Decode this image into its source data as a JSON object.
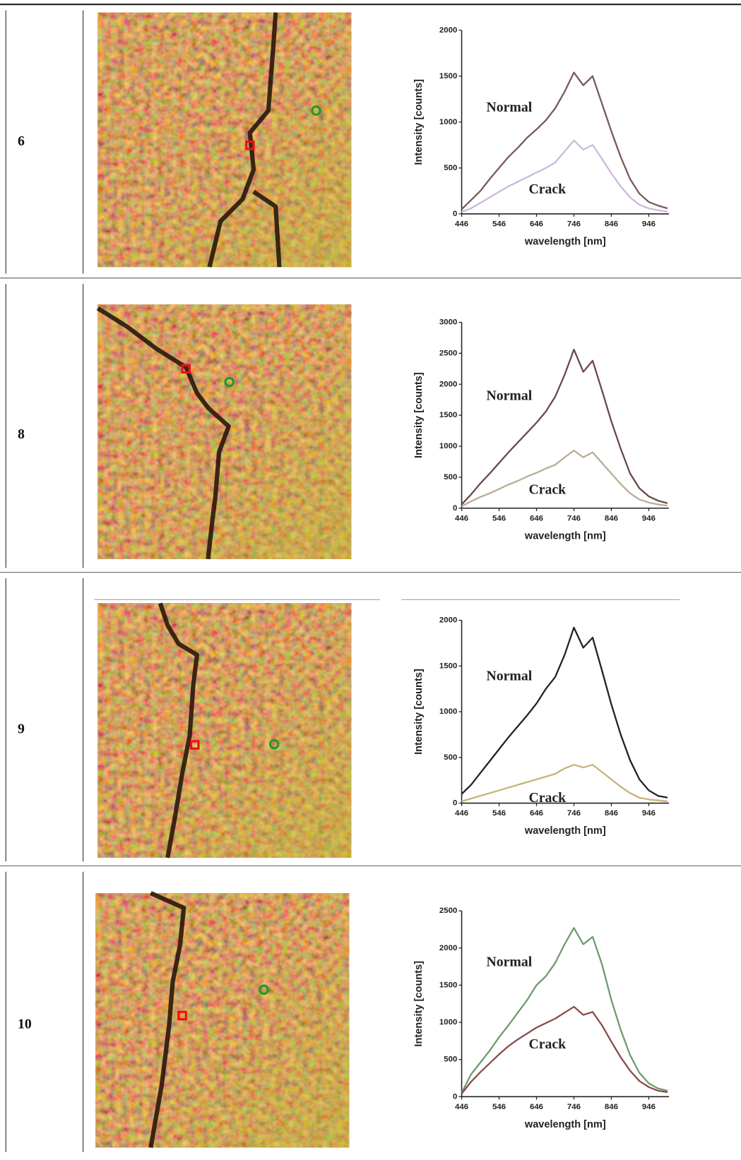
{
  "table": {
    "rows": [
      "6",
      "8",
      "9",
      "10"
    ]
  },
  "chart_data": [
    {
      "type": "line",
      "xlabel": "wavelength [nm]",
      "ylabel": "Intensity [counts]",
      "x": [
        446,
        471,
        496,
        521,
        546,
        571,
        596,
        621,
        646,
        671,
        696,
        721,
        746,
        771,
        796,
        821,
        846,
        871,
        896,
        921,
        946,
        971,
        996
      ],
      "series": [
        {
          "name": "Normal",
          "color": "#7a5858",
          "values": [
            50,
            150,
            250,
            380,
            500,
            620,
            720,
            830,
            920,
            1020,
            1150,
            1330,
            1540,
            1400,
            1500,
            1200,
            900,
            620,
            380,
            220,
            130,
            90,
            60
          ]
        },
        {
          "name": "Crack",
          "color": "#cdb8dc",
          "values": [
            20,
            60,
            120,
            180,
            240,
            300,
            350,
            400,
            450,
            500,
            560,
            680,
            800,
            700,
            750,
            600,
            440,
            300,
            180,
            100,
            60,
            40,
            25
          ]
        }
      ],
      "xlim": [
        446,
        1000
      ],
      "ylim": [
        0,
        2000
      ],
      "xticks": [
        446,
        546,
        646,
        746,
        846,
        946
      ],
      "yticks": [
        0,
        500,
        1000,
        1500,
        2000
      ]
    },
    {
      "type": "line",
      "xlabel": "wavelength [nm]",
      "ylabel": "Intensity [counts]",
      "x": [
        446,
        471,
        496,
        521,
        546,
        571,
        596,
        621,
        646,
        671,
        696,
        721,
        746,
        771,
        796,
        821,
        846,
        871,
        896,
        921,
        946,
        971,
        996
      ],
      "series": [
        {
          "name": "Normal",
          "color": "#6b4848",
          "values": [
            60,
            220,
            400,
            560,
            730,
            900,
            1060,
            1220,
            1380,
            1560,
            1800,
            2150,
            2560,
            2200,
            2380,
            1900,
            1400,
            960,
            560,
            320,
            190,
            120,
            80
          ]
        },
        {
          "name": "Crack",
          "color": "#b8ad93",
          "values": [
            30,
            110,
            180,
            240,
            310,
            380,
            440,
            510,
            570,
            640,
            700,
            820,
            930,
            820,
            900,
            730,
            560,
            390,
            240,
            140,
            90,
            60,
            40
          ]
        }
      ],
      "xlim": [
        446,
        1000
      ],
      "ylim": [
        0,
        3000
      ],
      "xticks": [
        446,
        546,
        646,
        746,
        846,
        946
      ],
      "yticks": [
        0,
        500,
        1000,
        1500,
        2000,
        2500,
        3000
      ]
    },
    {
      "type": "line",
      "xlabel": "wavelength [nm]",
      "ylabel": "Intensity [counts]",
      "x": [
        446,
        471,
        496,
        521,
        546,
        571,
        596,
        621,
        646,
        671,
        696,
        721,
        746,
        771,
        796,
        821,
        846,
        871,
        896,
        921,
        946,
        971,
        996
      ],
      "series": [
        {
          "name": "Normal",
          "color": "#222222",
          "values": [
            100,
            200,
            330,
            460,
            590,
            720,
            840,
            960,
            1090,
            1250,
            1380,
            1620,
            1920,
            1700,
            1810,
            1450,
            1080,
            750,
            470,
            260,
            140,
            80,
            60
          ]
        },
        {
          "name": "Crack",
          "color": "#c9b27a",
          "values": [
            20,
            50,
            80,
            110,
            140,
            170,
            200,
            230,
            260,
            290,
            320,
            380,
            420,
            390,
            420,
            340,
            260,
            180,
            110,
            60,
            40,
            30,
            20
          ]
        }
      ],
      "xlim": [
        446,
        1000
      ],
      "ylim": [
        0,
        2000
      ],
      "xticks": [
        446,
        546,
        646,
        746,
        846,
        946
      ],
      "yticks": [
        0,
        500,
        1000,
        1500,
        2000
      ]
    },
    {
      "type": "line",
      "xlabel": "wavelength [nm]",
      "ylabel": "Intensity [counts]",
      "x": [
        446,
        471,
        496,
        521,
        546,
        571,
        596,
        621,
        646,
        671,
        696,
        721,
        746,
        771,
        796,
        821,
        846,
        871,
        896,
        921,
        946,
        971,
        996
      ],
      "series": [
        {
          "name": "Normal",
          "color": "#6e9a6e",
          "values": [
            50,
            300,
            460,
            620,
            800,
            960,
            1130,
            1300,
            1500,
            1620,
            1800,
            2050,
            2270,
            2050,
            2150,
            1780,
            1300,
            900,
            560,
            320,
            180,
            110,
            80
          ]
        },
        {
          "name": "Crack",
          "color": "#8b4a4a",
          "values": [
            40,
            200,
            330,
            450,
            570,
            680,
            770,
            850,
            930,
            990,
            1050,
            1130,
            1210,
            1100,
            1140,
            960,
            740,
            530,
            350,
            210,
            130,
            80,
            60
          ]
        }
      ],
      "xlim": [
        446,
        1000
      ],
      "ylim": [
        0,
        2500
      ],
      "xticks": [
        446,
        546,
        646,
        746,
        846,
        946
      ],
      "yticks": [
        0,
        500,
        1000,
        1500,
        2000,
        2500
      ]
    }
  ]
}
